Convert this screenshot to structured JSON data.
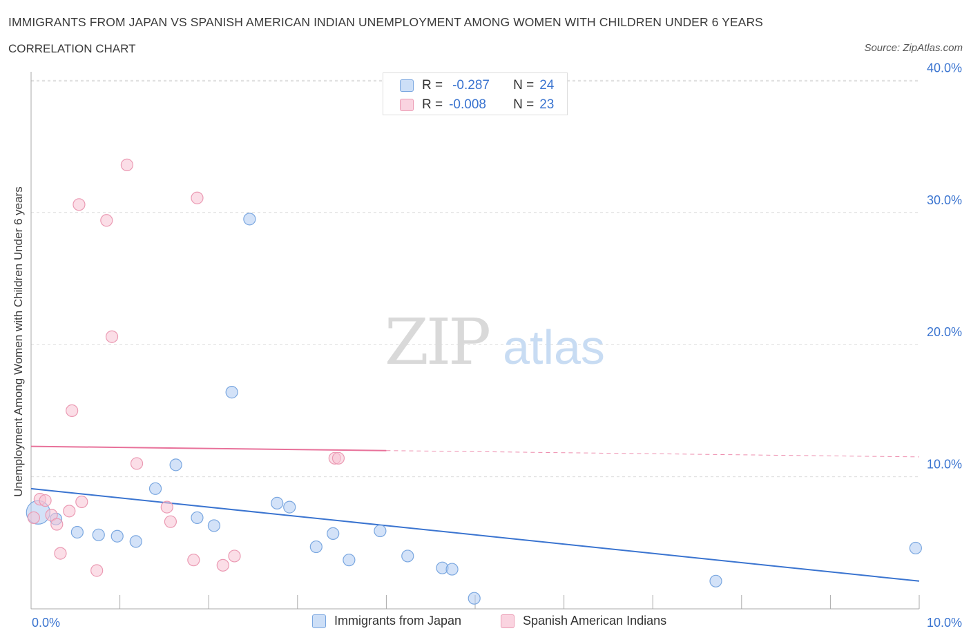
{
  "title": "IMMIGRANTS FROM JAPAN VS SPANISH AMERICAN INDIAN UNEMPLOYMENT AMONG WOMEN WITH CHILDREN UNDER 6 YEARS",
  "subtitle": "CORRELATION CHART",
  "source": "Source: ZipAtlas.com",
  "watermark": {
    "zip": "ZIP",
    "atlas": "atlas"
  },
  "colors": {
    "blue_fill": "#aecbf3",
    "blue_stroke": "#7aa7e0",
    "blue_line": "#3a74d0",
    "pink_fill": "#f7c3d3",
    "pink_stroke": "#eb9ab3",
    "pink_line": "#e8719a",
    "axis_text": "#3a74d0",
    "grid": "#dcdcdc"
  },
  "legend": {
    "series1": {
      "r_label": "R =",
      "r_value": "-0.287",
      "n_label": "N =",
      "n_value": "24"
    },
    "series2": {
      "r_label": "R =",
      "r_value": "-0.008",
      "n_label": "N =",
      "n_value": "23"
    }
  },
  "bottom_legend": {
    "series1": "Immigrants from Japan",
    "series2": "Spanish American Indians"
  },
  "chart_data": {
    "type": "scatter",
    "title": "IMMIGRANTS FROM JAPAN VS SPANISH AMERICAN INDIAN UNEMPLOYMENT AMONG WOMEN WITH CHILDREN UNDER 6 YEARS",
    "xlabel": "",
    "ylabel": "Unemployment Among Women with Children Under 6 years",
    "xlim": [
      0,
      10
    ],
    "ylim": [
      0,
      40
    ],
    "x_tick_labels": [
      "0.0%",
      "10.0%"
    ],
    "y_ticks": [
      10,
      20,
      30,
      40
    ],
    "y_tick_labels": [
      "10.0%",
      "20.0%",
      "30.0%",
      "40.0%"
    ],
    "grid": true,
    "series": [
      {
        "name": "Immigrants from Japan",
        "color": "blue",
        "points": [
          {
            "x": 0.08,
            "y": 7.3,
            "size": "large"
          },
          {
            "x": 0.28,
            "y": 6.8
          },
          {
            "x": 0.52,
            "y": 5.8
          },
          {
            "x": 0.76,
            "y": 5.6
          },
          {
            "x": 0.97,
            "y": 5.5
          },
          {
            "x": 1.18,
            "y": 5.1
          },
          {
            "x": 1.4,
            "y": 9.1
          },
          {
            "x": 1.63,
            "y": 10.9
          },
          {
            "x": 1.87,
            "y": 6.9
          },
          {
            "x": 2.06,
            "y": 6.3
          },
          {
            "x": 2.26,
            "y": 16.4
          },
          {
            "x": 2.46,
            "y": 29.5
          },
          {
            "x": 2.77,
            "y": 8.0
          },
          {
            "x": 2.91,
            "y": 7.7
          },
          {
            "x": 3.21,
            "y": 4.7
          },
          {
            "x": 3.4,
            "y": 5.7
          },
          {
            "x": 3.58,
            "y": 3.7
          },
          {
            "x": 3.93,
            "y": 5.9
          },
          {
            "x": 4.24,
            "y": 4.0
          },
          {
            "x": 4.63,
            "y": 3.1
          },
          {
            "x": 4.74,
            "y": 3.0
          },
          {
            "x": 4.99,
            "y": 0.8
          },
          {
            "x": 7.71,
            "y": 2.1
          },
          {
            "x": 9.96,
            "y": 4.6
          }
        ],
        "trend": {
          "x0": 0,
          "y0": 9.1,
          "x1": 10,
          "y1": 2.1
        }
      },
      {
        "name": "Spanish American Indians",
        "color": "pink",
        "points": [
          {
            "x": 0.03,
            "y": 6.9
          },
          {
            "x": 0.1,
            "y": 8.3
          },
          {
            "x": 0.16,
            "y": 8.2
          },
          {
            "x": 0.23,
            "y": 7.1
          },
          {
            "x": 0.29,
            "y": 6.4
          },
          {
            "x": 0.33,
            "y": 4.2
          },
          {
            "x": 0.43,
            "y": 7.4
          },
          {
            "x": 0.46,
            "y": 15.0
          },
          {
            "x": 0.54,
            "y": 30.6
          },
          {
            "x": 0.57,
            "y": 8.1
          },
          {
            "x": 0.74,
            "y": 2.9
          },
          {
            "x": 0.85,
            "y": 29.4
          },
          {
            "x": 0.91,
            "y": 20.6
          },
          {
            "x": 1.08,
            "y": 33.6
          },
          {
            "x": 1.19,
            "y": 11.0
          },
          {
            "x": 1.53,
            "y": 7.7
          },
          {
            "x": 1.57,
            "y": 6.6
          },
          {
            "x": 1.83,
            "y": 3.7
          },
          {
            "x": 1.87,
            "y": 31.1
          },
          {
            "x": 2.16,
            "y": 3.3
          },
          {
            "x": 2.29,
            "y": 4.0
          },
          {
            "x": 3.42,
            "y": 11.4
          },
          {
            "x": 3.46,
            "y": 11.4
          }
        ],
        "trend": {
          "x0": 0,
          "y0": 12.3,
          "x1": 10,
          "y1": 11.5,
          "solid_until_x": 4.0
        }
      }
    ]
  }
}
